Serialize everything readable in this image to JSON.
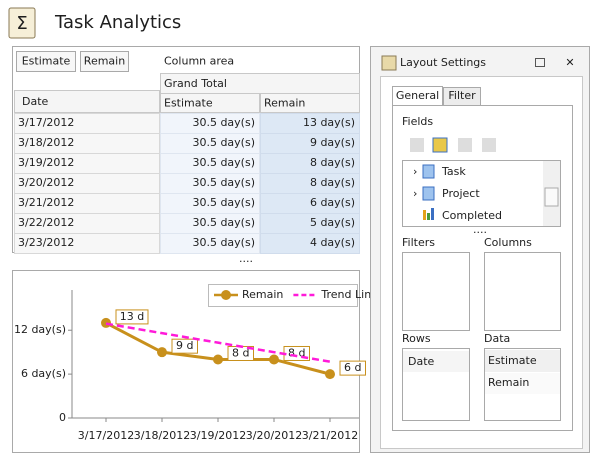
{
  "header": {
    "title": "Task Analytics"
  },
  "pivot": {
    "filter_fields": [
      "Estimate",
      "Remain"
    ],
    "column_area": "Column area",
    "column_header": "Grand Total",
    "row_header": "Date",
    "data_headers": [
      "Estimate",
      "Remain"
    ],
    "rows": [
      [
        "3/17/2012",
        "30.5 day(s)",
        "13 day(s)"
      ],
      [
        "3/18/2012",
        "30.5 day(s)",
        "9 day(s)"
      ],
      [
        "3/19/2012",
        "30.5 day(s)",
        "8 day(s)"
      ],
      [
        "3/20/2012",
        "30.5 day(s)",
        "8 day(s)"
      ],
      [
        "3/21/2012",
        "30.5 day(s)",
        "6 day(s)"
      ],
      [
        "3/22/2012",
        "30.5 day(s)",
        "5 day(s)"
      ],
      [
        "3/23/2012",
        "30.5 day(s)",
        "4 day(s)"
      ]
    ]
  },
  "chart_data": {
    "type": "line",
    "categories": [
      "3/17/2012",
      "3/18/2012",
      "3/19/2012",
      "3/20/2012",
      "3/21/2012"
    ],
    "series": [
      {
        "name": "Remain",
        "color": "#c8901c",
        "values": [
          13,
          9,
          8,
          8,
          6
        ],
        "value_labels": [
          "13 d",
          "9 d",
          "8 d",
          "8 d",
          "6 d"
        ]
      },
      {
        "name": "Trend Line",
        "color": "#ff1ad9",
        "dashed": true,
        "values": [
          12.9,
          11.6,
          10.3,
          9.0,
          7.7
        ]
      }
    ],
    "ylim": [
      0,
      17.5
    ],
    "yticks": [
      0,
      {
        "value": 6,
        "label": "6 day(s)"
      },
      {
        "value": 12,
        "label": "12 day(s)"
      }
    ],
    "legend": "top-right"
  },
  "layout_settings": {
    "title": "Layout Settings",
    "tabs": [
      "General",
      "Filter"
    ],
    "fields_label": "Fields",
    "fields": [
      "Task",
      "Project",
      "Completed"
    ],
    "filters_label": "Filters",
    "columns_label": "Columns",
    "rows_label": "Rows",
    "rows_items": [
      "Date"
    ],
    "data_label": "Data",
    "data_items": [
      "Estimate",
      "Remain"
    ]
  }
}
